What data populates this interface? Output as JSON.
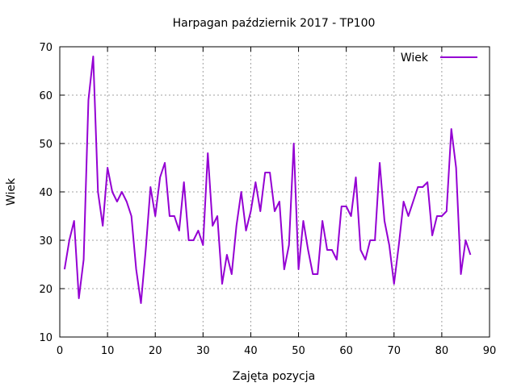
{
  "chart_data": {
    "type": "line",
    "title": "Harpagan październik 2017 - TP100",
    "xlabel": "Zajęta pozycja",
    "ylabel": "Wiek",
    "xlim": [
      0,
      90
    ],
    "ylim": [
      10,
      70
    ],
    "xticks": [
      0,
      10,
      20,
      30,
      40,
      50,
      60,
      70,
      80,
      90
    ],
    "yticks": [
      10,
      20,
      30,
      40,
      50,
      60,
      70
    ],
    "grid": true,
    "legend_position": "top-right",
    "series": [
      {
        "name": "Wiek",
        "color": "#9400d3",
        "x": [
          1,
          2,
          3,
          4,
          5,
          6,
          7,
          8,
          9,
          10,
          11,
          12,
          13,
          14,
          15,
          16,
          17,
          18,
          19,
          20,
          21,
          22,
          23,
          24,
          25,
          26,
          27,
          28,
          29,
          30,
          31,
          32,
          33,
          34,
          35,
          36,
          37,
          38,
          39,
          40,
          41,
          42,
          43,
          44,
          45,
          46,
          47,
          48,
          49,
          50,
          51,
          52,
          53,
          54,
          55,
          56,
          57,
          58,
          59,
          60,
          61,
          62,
          63,
          64,
          65,
          66,
          67,
          68,
          69,
          70,
          71,
          72,
          73,
          74,
          75,
          76,
          77,
          78,
          79,
          80,
          81,
          82,
          83,
          84,
          85,
          86
        ],
        "y": [
          24,
          30,
          34,
          18,
          26,
          59,
          68,
          40,
          33,
          45,
          40,
          38,
          40,
          38,
          35,
          24,
          17,
          28,
          41,
          35,
          43,
          46,
          35,
          35,
          32,
          42,
          30,
          30,
          32,
          29,
          48,
          33,
          35,
          21,
          27,
          23,
          33,
          40,
          32,
          36,
          42,
          36,
          44,
          44,
          36,
          38,
          24,
          29,
          50,
          24,
          34,
          28,
          23,
          23,
          34,
          28,
          28,
          26,
          37,
          37,
          35,
          43,
          28,
          26,
          30,
          30,
          46,
          34,
          29,
          21,
          29,
          38,
          35,
          38,
          41,
          41,
          42,
          31,
          35,
          35,
          36,
          53,
          45,
          23,
          30,
          27
        ]
      }
    ]
  }
}
